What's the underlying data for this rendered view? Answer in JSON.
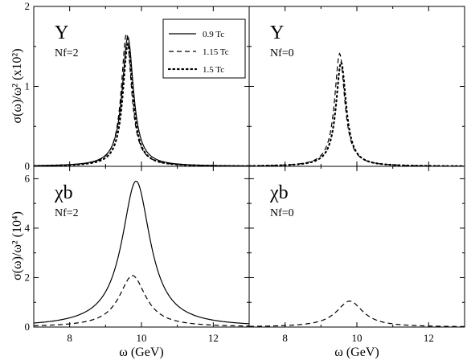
{
  "figure": {
    "ylabel_top": "σ(ω)/ω² (x10²)",
    "ylabel_bottom": "σ(ω)/ω² (10⁴)",
    "xlabel": "ω (GeV)"
  },
  "legend": [
    {
      "label": "0.9 Tc",
      "style": "solid"
    },
    {
      "label": "1.15 Tc",
      "style": "dashed"
    },
    {
      "label": "1.5 Tc",
      "style": "dotted"
    }
  ],
  "chart_data": [
    {
      "type": "line",
      "panel": "top-left",
      "particle": "Υ",
      "nf_label": "Nf=2",
      "xlim": [
        7,
        13
      ],
      "ylim": [
        0,
        2
      ],
      "xticks": [
        8,
        10,
        12
      ],
      "yticks": [
        0,
        1,
        2
      ],
      "series": [
        {
          "name": "0.9 Tc",
          "style": "solid",
          "peak": 9.62,
          "width": 0.19,
          "amp": 1.62,
          "base": 0.0
        },
        {
          "name": "1.15 Tc",
          "style": "dashed",
          "peak": 9.58,
          "width": 0.17,
          "amp": 1.66,
          "base": 0.0
        },
        {
          "name": "1.5 Tc",
          "style": "dotted",
          "peak": 9.62,
          "width": 0.17,
          "amp": 1.53,
          "base": 0.0
        }
      ]
    },
    {
      "type": "line",
      "panel": "top-right",
      "particle": "Υ",
      "nf_label": "Nf=0",
      "xlim": [
        7,
        13
      ],
      "ylim": [
        0,
        2
      ],
      "xticks": [
        8,
        10,
        12
      ],
      "yticks": [
        0,
        1,
        2
      ],
      "series": [
        {
          "name": "1.15 Tc",
          "style": "dashed",
          "peak": 9.52,
          "width": 0.17,
          "amp": 1.41,
          "base": 0.0
        },
        {
          "name": "1.5 Tc",
          "style": "dotted",
          "peak": 9.56,
          "width": 0.17,
          "amp": 1.3,
          "base": 0.0
        }
      ]
    },
    {
      "type": "line",
      "panel": "bottom-left",
      "particle": "χb",
      "nf_label": "Nf=2",
      "xlim": [
        7,
        13
      ],
      "ylim": [
        0,
        6.5
      ],
      "xticks": [
        8,
        10,
        12
      ],
      "yticks": [
        0,
        2,
        4,
        6
      ],
      "series": [
        {
          "name": "0.9 Tc",
          "style": "solid",
          "peak": 9.85,
          "width": 0.48,
          "amp": 5.9,
          "base": 0.0
        },
        {
          "name": "1.15 Tc",
          "style": "dashed",
          "peak": 9.75,
          "width": 0.45,
          "amp": 2.08,
          "base": 0.0
        }
      ]
    },
    {
      "type": "line",
      "panel": "bottom-right",
      "particle": "χb",
      "nf_label": "Nf=0",
      "xlim": [
        7,
        13
      ],
      "ylim": [
        0,
        6.5
      ],
      "xticks": [
        8,
        10,
        12
      ],
      "yticks": [
        0,
        2,
        4,
        6
      ],
      "series": [
        {
          "name": "1.15 Tc",
          "style": "dashed",
          "peak": 9.8,
          "width": 0.45,
          "amp": 1.05,
          "base": 0.0
        }
      ]
    }
  ]
}
